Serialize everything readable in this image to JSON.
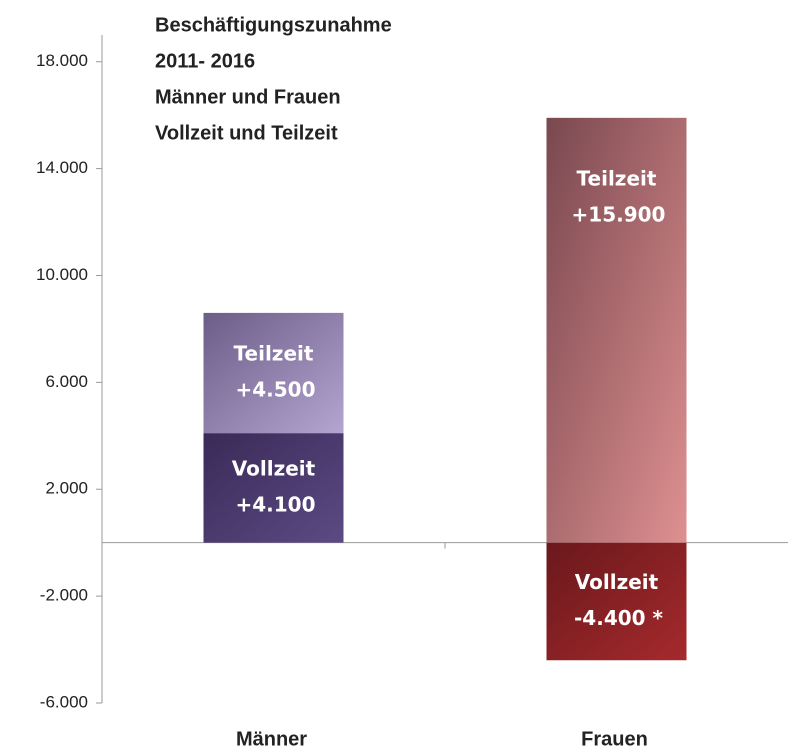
{
  "chart_data": {
    "type": "stacked_bar",
    "title": [
      "Beschäftigungszunahme",
      "2011- 2016",
      "Männer und Frauen",
      "Vollzeit und Teilzeit"
    ],
    "categories": [
      "Männer",
      "Frauen"
    ],
    "series": [
      {
        "name": "Vollzeit",
        "values": [
          4100,
          -4400
        ],
        "value_labels": [
          "+4.100",
          "-4.400 *"
        ],
        "colors": [
          [
            "#3a2a57",
            "#5c4a84"
          ],
          [
            "#6a181c",
            "#a52a2c"
          ]
        ]
      },
      {
        "name": "Teilzeit",
        "values": [
          4500,
          15900
        ],
        "value_labels": [
          "+4.500",
          "+15.900"
        ],
        "colors": [
          [
            "#6c5c88",
            "#b4a4d0"
          ],
          [
            "#7a4850",
            "#de9090"
          ]
        ]
      }
    ],
    "ylim": [
      -6000,
      19000
    ],
    "yticks": [
      {
        "value": 18000,
        "label": "18.000"
      },
      {
        "value": 14000,
        "label": "14.000"
      },
      {
        "value": 10000,
        "label": "10.000"
      },
      {
        "value": 6000,
        "label": "6.000"
      },
      {
        "value": 2000,
        "label": "2.000"
      },
      {
        "value": -2000,
        "label": "-2.000"
      },
      {
        "value": -6000,
        "label": "-6.000"
      }
    ]
  }
}
